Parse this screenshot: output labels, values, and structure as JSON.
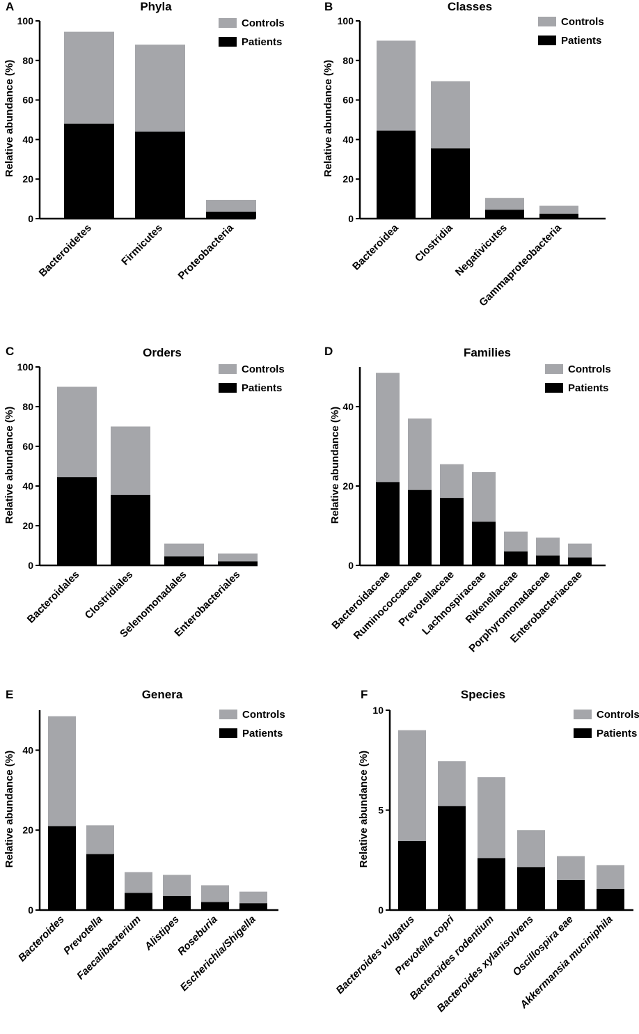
{
  "colors": {
    "controls": "#a5a6aa",
    "patients": "#000000"
  },
  "chart_data": [
    {
      "panel": "A",
      "type": "bar",
      "stacked": true,
      "title": "Phyla",
      "ylabel": "Relative abundance (%)",
      "ylim": [
        0,
        100
      ],
      "yticks": [
        0,
        20,
        40,
        60,
        80,
        100
      ],
      "categories": [
        "Bacteroidetes",
        "Firmicutes",
        "Proteobacteria"
      ],
      "italic": false,
      "series": [
        {
          "name": "Patients",
          "values": [
            48,
            44,
            3.5
          ]
        },
        {
          "name": "Controls",
          "values": [
            46.5,
            44,
            6
          ]
        }
      ],
      "legend": [
        "Controls",
        "Patients"
      ]
    },
    {
      "panel": "B",
      "type": "bar",
      "stacked": true,
      "title": "Classes",
      "ylabel": "Relative abundance (%)",
      "ylim": [
        0,
        100
      ],
      "yticks": [
        0,
        20,
        40,
        60,
        80,
        100
      ],
      "categories": [
        "Bacteroidea",
        "Clostridia",
        "Negativicutes",
        "Gammaproteobacteria"
      ],
      "italic": false,
      "series": [
        {
          "name": "Patients",
          "values": [
            44.5,
            35.5,
            4.5,
            2.5
          ]
        },
        {
          "name": "Controls",
          "values": [
            45.5,
            34,
            6,
            4
          ]
        }
      ],
      "legend": [
        "Controls",
        "Patients"
      ]
    },
    {
      "panel": "C",
      "type": "bar",
      "stacked": true,
      "title": "Orders",
      "ylabel": "Relative abundance (%)",
      "ylim": [
        0,
        100
      ],
      "yticks": [
        0,
        20,
        40,
        60,
        80,
        100
      ],
      "categories": [
        "Bacteroidales",
        "Clostridiales",
        "Selenomonadales",
        "Enterobacteriales"
      ],
      "italic": false,
      "series": [
        {
          "name": "Patients",
          "values": [
            44.5,
            35.5,
            4.5,
            2
          ]
        },
        {
          "name": "Controls",
          "values": [
            45.5,
            34.5,
            6.5,
            4
          ]
        }
      ],
      "legend": [
        "Controls",
        "Patients"
      ]
    },
    {
      "panel": "D",
      "type": "bar",
      "stacked": true,
      "title": "Families",
      "ylabel": "Relative abundance (%)",
      "ylim": [
        0,
        50
      ],
      "yticks": [
        0,
        20,
        40
      ],
      "categories": [
        "Bacteroidaceae",
        "Ruminococcaceae",
        "Prevotellaceae",
        "Lachnospiraceae",
        "Rikenellaceae",
        "Porphyromonadaceae",
        "Enterobacteriaceae"
      ],
      "italic": false,
      "series": [
        {
          "name": "Patients",
          "values": [
            21,
            19,
            17,
            11,
            3.5,
            2.5,
            2
          ]
        },
        {
          "name": "Controls",
          "values": [
            27.5,
            18,
            8.5,
            12.5,
            5,
            4.5,
            3.5
          ]
        }
      ],
      "legend": [
        "Controls",
        "Patients"
      ]
    },
    {
      "panel": "E",
      "type": "bar",
      "stacked": true,
      "title": "Genera",
      "ylabel": "Relative abundance (%)",
      "ylim": [
        0,
        50
      ],
      "yticks": [
        0,
        20,
        40
      ],
      "categories": [
        "Bacteroides",
        "Prevotella",
        "Faecalibacterium",
        "Alistipes",
        "Roseburia",
        "Escherichia/Shigella"
      ],
      "italic": true,
      "series": [
        {
          "name": "Patients",
          "values": [
            21,
            14,
            4.3,
            3.5,
            2,
            1.7
          ]
        },
        {
          "name": "Controls",
          "values": [
            27.5,
            7.2,
            5.2,
            5.3,
            4.2,
            2.9
          ]
        }
      ],
      "legend": [
        "Controls",
        "Patients"
      ]
    },
    {
      "panel": "F",
      "type": "bar",
      "stacked": true,
      "title": "Species",
      "ylabel": "Relative abundance (%)",
      "ylim": [
        0,
        10
      ],
      "yticks": [
        0,
        5,
        10
      ],
      "categories": [
        "Bacteroides vulgatus",
        "Prevotella copri",
        "Bacteroides rodentium",
        "Bacteroides xylanisolvens",
        "Oscillospira eae",
        "Akkermansia muciniphila"
      ],
      "italic": true,
      "series": [
        {
          "name": "Patients",
          "values": [
            3.45,
            5.2,
            2.6,
            2.15,
            1.5,
            1.05
          ]
        },
        {
          "name": "Controls",
          "values": [
            5.55,
            2.25,
            4.05,
            1.85,
            1.2,
            1.2
          ]
        }
      ],
      "legend": [
        "Controls",
        "Patients"
      ]
    }
  ]
}
